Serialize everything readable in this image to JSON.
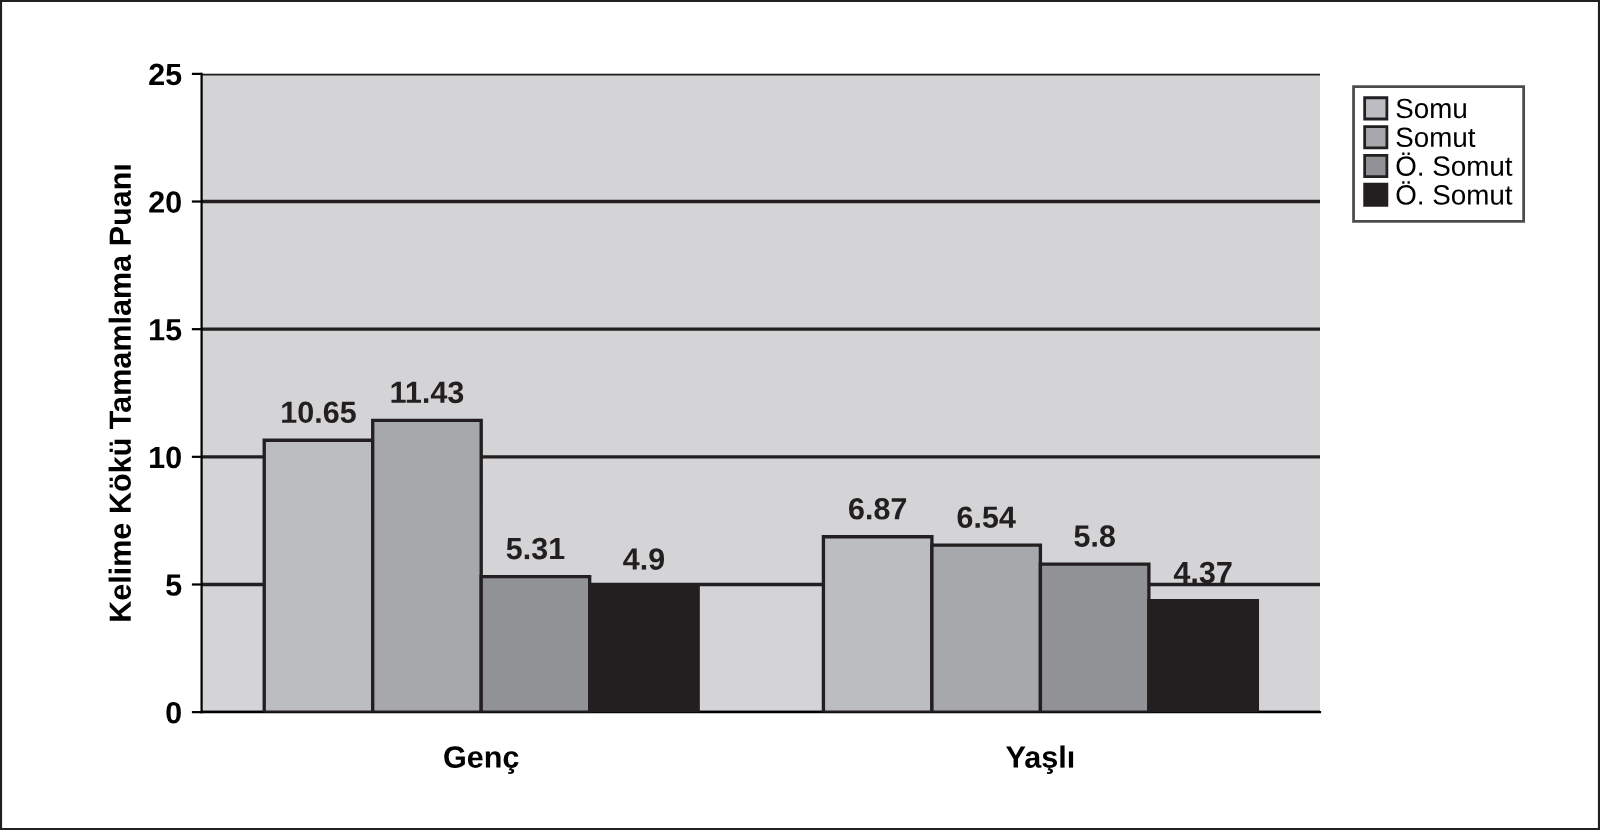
{
  "chart_data": {
    "type": "bar",
    "ylabel": "Kelime Kökü Tamamlama Puanı",
    "categories": [
      "Genç",
      "Yaşlı"
    ],
    "series": [
      {
        "name": "Somu",
        "color": "#bcbdc0",
        "values": [
          10.65,
          6.87
        ]
      },
      {
        "name": "Somut",
        "color": "#a7a8ab",
        "values": [
          11.43,
          6.54
        ]
      },
      {
        "name": "Ö. Somut",
        "color": "#919295",
        "values": [
          5.31,
          5.8
        ]
      },
      {
        "name": "Ö. Somut",
        "color": "#231f20",
        "values": [
          4.9,
          4.37
        ]
      }
    ],
    "ylim": [
      0,
      25
    ],
    "yticks": [
      0,
      5,
      10,
      15,
      20,
      25
    ],
    "grid": "y",
    "legend": "right",
    "data_labels": true
  }
}
